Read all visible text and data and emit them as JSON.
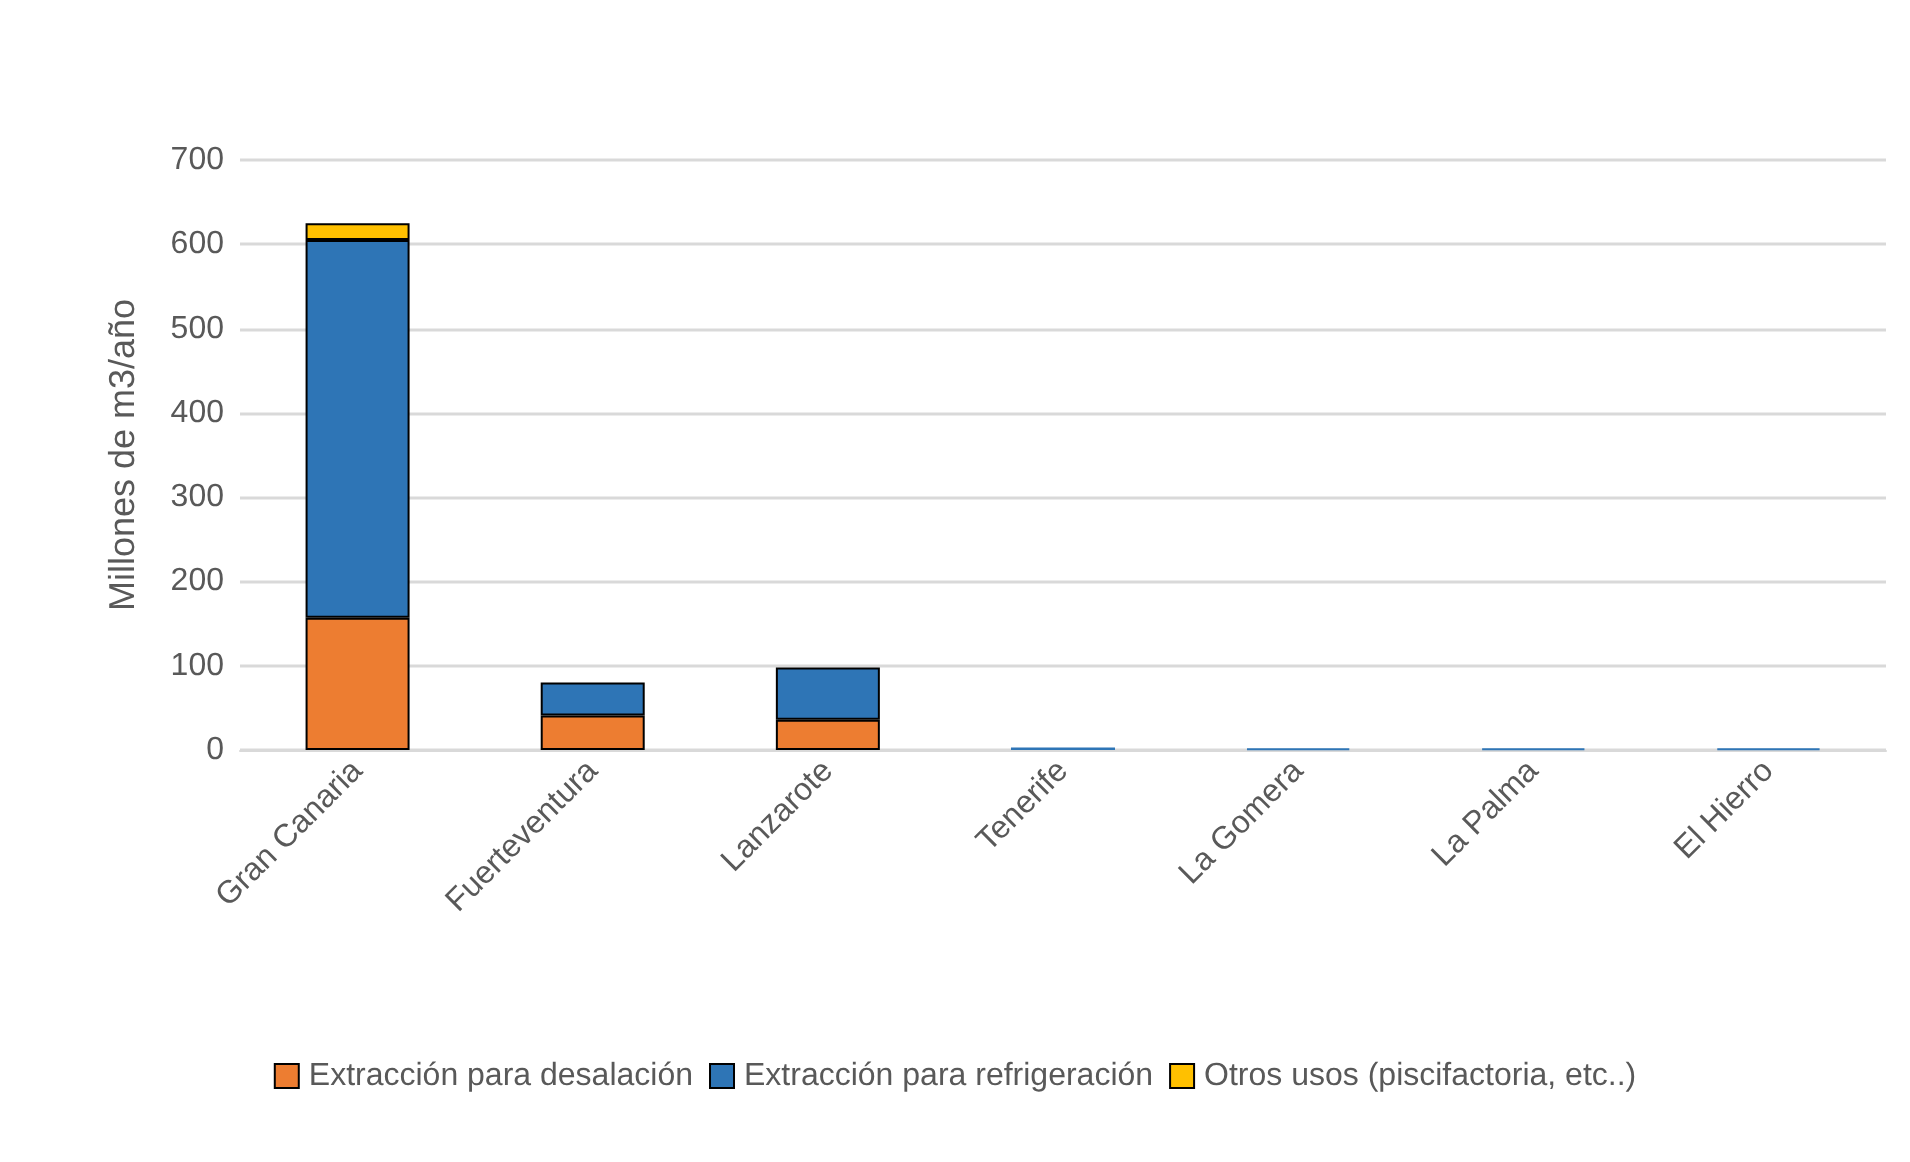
{
  "chart_data": {
    "type": "bar",
    "stacked": true,
    "ylabel": "Millones de m3/año",
    "categories": [
      "Gran Canaria",
      "Fuerteventura",
      "Lanzarote",
      "Tenerife",
      "La Gomera",
      "La Palma",
      "El Hierro"
    ],
    "series": [
      {
        "name": "Extracción para desalación",
        "color": "#ed7d31",
        "values": [
          157,
          41,
          36,
          null,
          null,
          null,
          null
        ]
      },
      {
        "name": "Extracción para refrigeración",
        "color": "#2e75b6",
        "values": [
          448,
          39,
          62,
          3,
          2,
          2,
          2
        ]
      },
      {
        "name": "Otros usos (piscifactoria, etc..)",
        "color": "#ffc000",
        "values": [
          20,
          null,
          null,
          null,
          null,
          null,
          null
        ]
      }
    ],
    "ylim": [
      0,
      700
    ],
    "yticks": [
      0,
      100,
      200,
      300,
      400,
      500,
      600,
      700
    ],
    "grid": "y",
    "legend": "bottom"
  }
}
